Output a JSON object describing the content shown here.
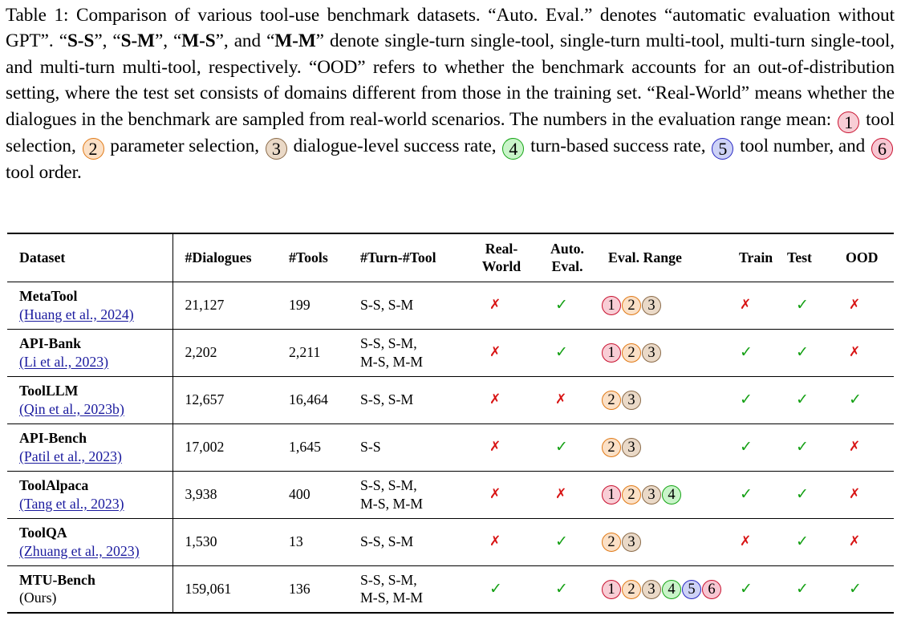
{
  "caption": {
    "p1": "Table 1: Comparison of various tool-use benchmark datasets. “Auto. Eval.” denotes “automatic evaluation without GPT”. “",
    "ss": "S-S",
    "p2": "”, “",
    "sm": "S-M",
    "p3": "”, “",
    "ms": "M-S",
    "p4": "”, and “",
    "mm": "M-M",
    "p5": "” denote single-turn single-tool, single-turn multi-tool, multi-turn single-tool, and multi-turn multi-tool, respectively. “OOD” refers to whether the benchmark accounts for an out-of-distribution setting, where the test set consists of domains different from those in the training set. “Real-World” means whether the dialogues in the benchmark are sampled from real-world scenarios. The numbers in the evaluation range mean:",
    "legend": [
      {
        "num": "1",
        "text": "tool selection,"
      },
      {
        "num": "2",
        "text": "parameter selection,"
      },
      {
        "num": "3",
        "text": "dialogue-level success rate,"
      },
      {
        "num": "4",
        "text": "turn-based success rate,"
      },
      {
        "num": "5",
        "text": "tool number, and"
      },
      {
        "num": "6",
        "text": "tool order."
      }
    ]
  },
  "headers": {
    "dataset": "Dataset",
    "dialogues": "#Dialogues",
    "tools": "#Tools",
    "turn_tool": "#Turn-#Tool",
    "real_world_1": "Real-",
    "real_world_2": "World",
    "auto_eval_1": "Auto.",
    "auto_eval_2": "Eval.",
    "eval_range": "Eval. Range",
    "train": "Train",
    "test": "Test",
    "ood": "OOD"
  },
  "symbols": {
    "check": "✓",
    "cross": "✗"
  },
  "rows": [
    {
      "name": "MetaTool",
      "cite": "(Huang et al., 2024)",
      "dialogues": "21,127",
      "tools": "199",
      "turn1": "S-S, S-M",
      "turn2": "",
      "real": "cross",
      "auto": "check",
      "range": [
        "1",
        "2",
        "3"
      ],
      "train": "cross",
      "test": "check",
      "ood": "cross"
    },
    {
      "name": "API-Bank",
      "cite": "(Li et al., 2023)",
      "dialogues": "2,202",
      "tools": "2,211",
      "turn1": "S-S, S-M,",
      "turn2": "M-S, M-M",
      "real": "cross",
      "auto": "check",
      "range": [
        "1",
        "2",
        "3"
      ],
      "train": "check",
      "test": "check",
      "ood": "cross"
    },
    {
      "name": "ToolLLM",
      "cite": "(Qin et al., 2023b)",
      "dialogues": "12,657",
      "tools": "16,464",
      "turn1": "S-S, S-M",
      "turn2": "",
      "real": "cross",
      "auto": "cross",
      "range": [
        "2",
        "3"
      ],
      "train": "check",
      "test": "check",
      "ood": "check"
    },
    {
      "name": "API-Bench",
      "cite": "(Patil et al., 2023)",
      "dialogues": "17,002",
      "tools": "1,645",
      "turn1": "S-S",
      "turn2": "",
      "real": "cross",
      "auto": "check",
      "range": [
        "2",
        "3"
      ],
      "train": "check",
      "test": "check",
      "ood": "cross"
    },
    {
      "name": "ToolAlpaca",
      "cite": "(Tang et al., 2023)",
      "dialogues": "3,938",
      "tools": "400",
      "turn1": "S-S, S-M,",
      "turn2": "M-S, M-M",
      "real": "cross",
      "auto": "cross",
      "range": [
        "1",
        "2",
        "3",
        "4"
      ],
      "train": "check",
      "test": "check",
      "ood": "cross"
    },
    {
      "name": "ToolQA",
      "cite": "(Zhuang et al., 2023)",
      "dialogues": "1,530",
      "tools": "13",
      "turn1": "S-S, S-M",
      "turn2": "",
      "real": "cross",
      "auto": "check",
      "range": [
        "2",
        "3"
      ],
      "train": "cross",
      "test": "check",
      "ood": "cross"
    },
    {
      "name": "MTU-Bench",
      "cite": "(Ours)",
      "dialogues": "159,061",
      "tools": "136",
      "turn1": "S-S, S-M,",
      "turn2": "M-S, M-M",
      "real": "check",
      "auto": "check",
      "range": [
        "1",
        "2",
        "3",
        "4",
        "5",
        "6"
      ],
      "train": "check",
      "test": "check",
      "ood": "check"
    }
  ]
}
